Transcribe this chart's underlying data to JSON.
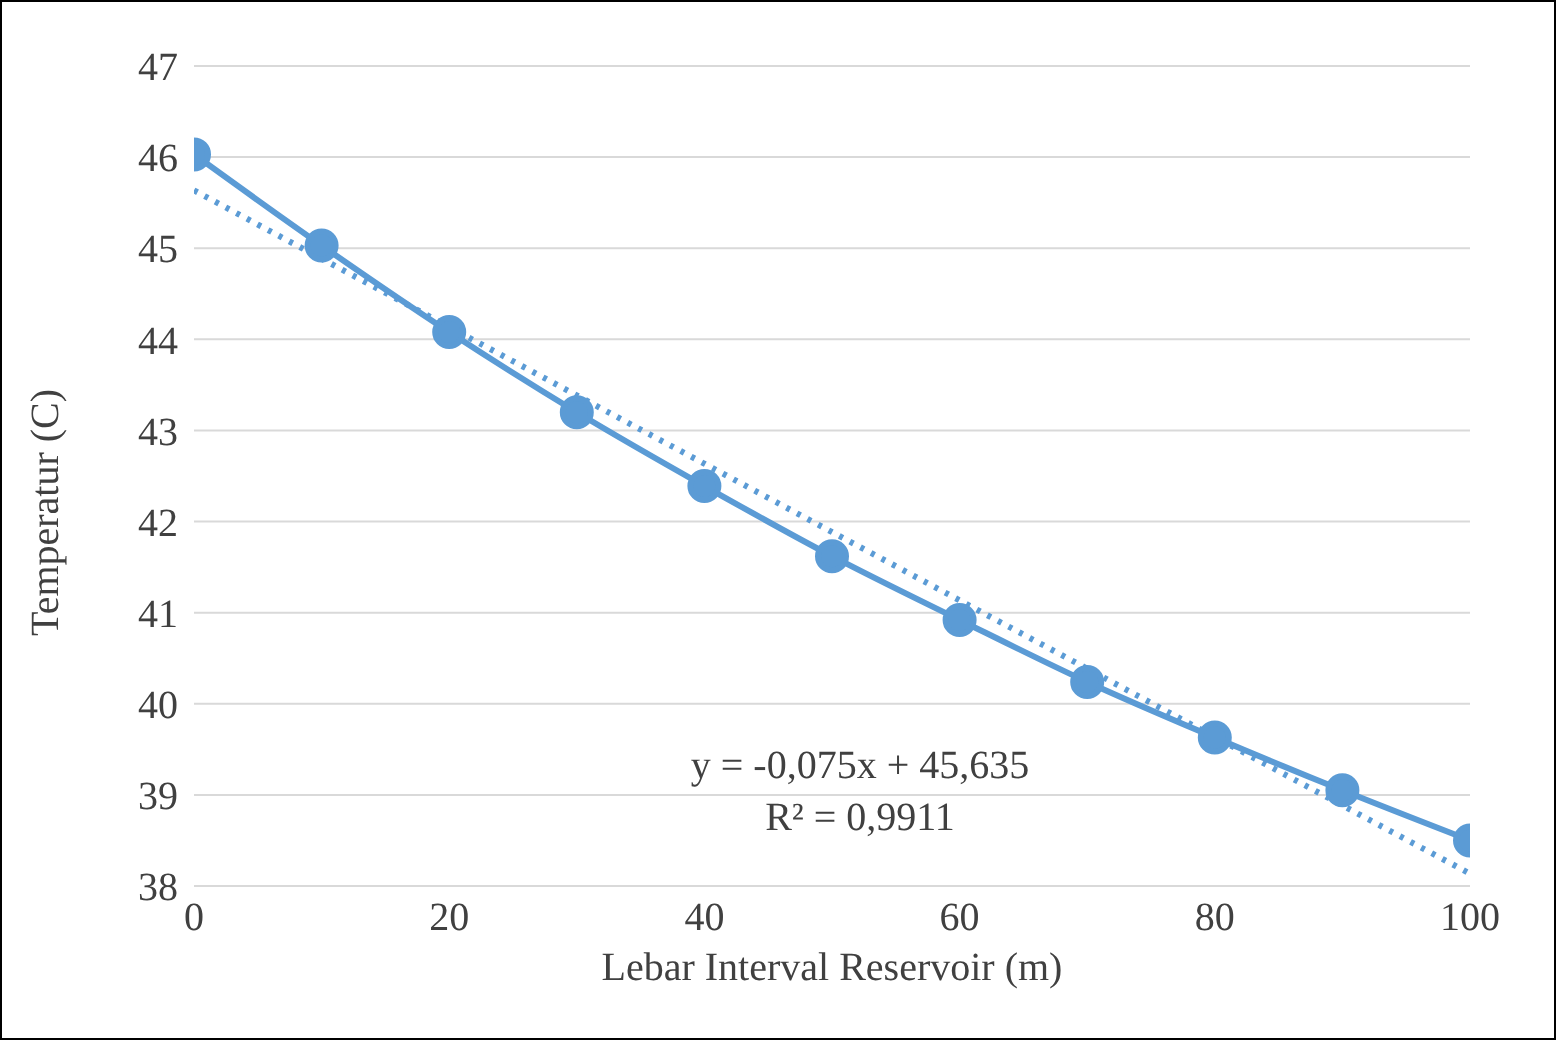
{
  "chart_data": {
    "type": "line",
    "xlabel": "Lebar Interval Reservoir (m)",
    "ylabel": "Temperatur (C)",
    "x": [
      0,
      10,
      20,
      30,
      40,
      50,
      60,
      70,
      80,
      90,
      100
    ],
    "series": [
      {
        "color": "#5b9bd5",
        "values": [
          46.03,
          45.03,
          44.08,
          43.2,
          42.39,
          41.62,
          40.92,
          40.24,
          39.63,
          39.05,
          38.5
        ],
        "marker": "circle",
        "line_style": "solid"
      },
      {
        "type": "line",
        "color": "#5b9bd5",
        "x": [
          0,
          100
        ],
        "values": [
          45.635,
          38.135
        ],
        "marker": "none",
        "line_style": "dotted"
      }
    ],
    "xlim": [
      0,
      100
    ],
    "xticks": [
      0,
      20,
      40,
      60,
      80,
      100
    ],
    "ylim": [
      38,
      47
    ],
    "yticks": [
      38,
      39,
      40,
      41,
      42,
      43,
      44,
      45,
      46,
      47
    ],
    "grid": "y",
    "legend": false,
    "annotations": [
      "y = -0,075x + 45,635",
      "R² = 0,9911"
    ]
  }
}
